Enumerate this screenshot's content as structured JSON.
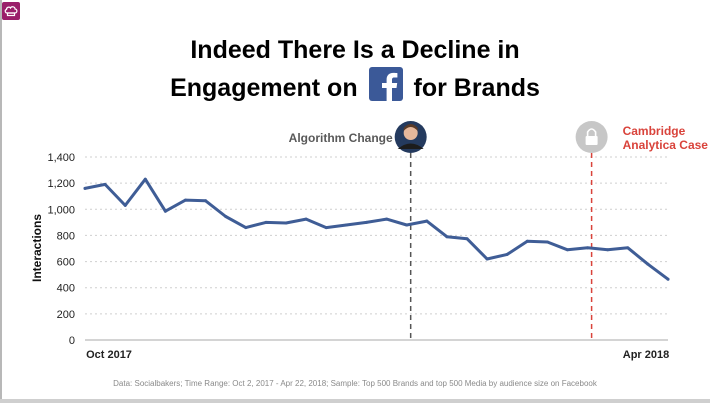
{
  "title": {
    "line1": "Indeed There Is a Decline in",
    "line2_pre": "Engagement on",
    "line2_post": "for Brands"
  },
  "chart_data": {
    "type": "line",
    "ylabel": "Interactions",
    "ylim": [
      0,
      1400
    ],
    "yticks": [
      0,
      200,
      400,
      600,
      800,
      1000,
      1200,
      1400
    ],
    "ytick_labels": [
      "0",
      "200",
      "400",
      "600",
      "800",
      "1,000",
      "1,200",
      "1,400"
    ],
    "x_tick_labels": [
      {
        "index": 0,
        "label": "Oct 2017"
      },
      {
        "index": 29,
        "label": "Apr 2018"
      }
    ],
    "grid": true,
    "series": [
      {
        "color": "#3f5d96",
        "values": [
          1160,
          1190,
          1030,
          1230,
          985,
          1070,
          1065,
          945,
          860,
          900,
          895,
          925,
          860,
          880,
          900,
          925,
          880,
          910,
          790,
          775,
          620,
          655,
          755,
          750,
          690,
          705,
          690,
          705,
          580,
          465
        ]
      }
    ],
    "annotations": [
      {
        "label": "Algorithm Change",
        "at_index": 16.2,
        "color": "#595959",
        "line_color": "#555555"
      },
      {
        "label_lines": [
          "Cambridge",
          "Analytica Case"
        ],
        "at_index": 25.2,
        "color": "#d9433b",
        "line_color": "#d9433b"
      }
    ]
  },
  "footnote": "Data: Socialbakers; Time Range: Oct 2, 2017  - Apr 22, 2018; Sample: Top 500 Brands and top 500 Media by audience size on Facebook",
  "colors": {
    "line": "#3f5d96",
    "facebook_blue": "#3b5998",
    "cambridge_red": "#d9433b",
    "logo": "#9a1f6a"
  },
  "icons": [
    "chef-hat-logo-icon",
    "facebook-logo-icon",
    "profile-photo-icon",
    "padlock-icon"
  ]
}
